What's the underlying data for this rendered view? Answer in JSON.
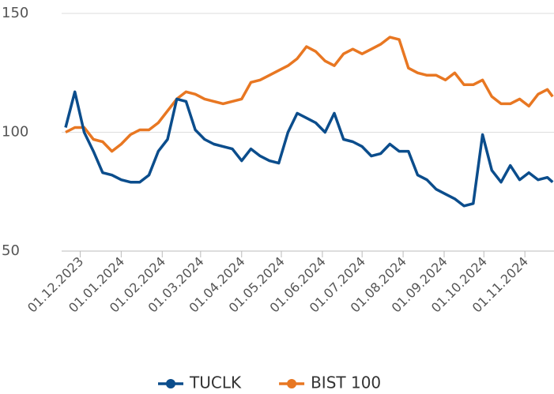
{
  "chart_data": {
    "type": "line",
    "x": [
      "2023-11-20",
      "2023-11-27",
      "2023-12-04",
      "2023-12-11",
      "2023-12-18",
      "2023-12-25",
      "2024-01-01",
      "2024-01-08",
      "2024-01-15",
      "2024-01-22",
      "2024-01-29",
      "2024-02-05",
      "2024-02-12",
      "2024-02-19",
      "2024-02-26",
      "2024-03-04",
      "2024-03-11",
      "2024-03-18",
      "2024-03-25",
      "2024-04-01",
      "2024-04-08",
      "2024-04-15",
      "2024-04-22",
      "2024-04-29",
      "2024-05-06",
      "2024-05-13",
      "2024-05-20",
      "2024-05-27",
      "2024-06-03",
      "2024-06-10",
      "2024-06-17",
      "2024-06-24",
      "2024-07-01",
      "2024-07-08",
      "2024-07-15",
      "2024-07-22",
      "2024-07-29",
      "2024-08-05",
      "2024-08-12",
      "2024-08-19",
      "2024-08-26",
      "2024-09-02",
      "2024-09-09",
      "2024-09-16",
      "2024-09-23",
      "2024-09-30",
      "2024-10-07",
      "2024-10-14",
      "2024-10-21",
      "2024-10-28",
      "2024-11-04",
      "2024-11-11",
      "2024-11-18",
      "2024-11-22"
    ],
    "series": [
      {
        "name": "TUCLK",
        "color": "#0b4d8c",
        "values": [
          102,
          117,
          100,
          92,
          83,
          82,
          80,
          79,
          79,
          82,
          92,
          97,
          114,
          113,
          101,
          97,
          95,
          94,
          93,
          88,
          93,
          90,
          88,
          87,
          100,
          108,
          106,
          104,
          100,
          108,
          97,
          96,
          94,
          90,
          91,
          95,
          92,
          92,
          82,
          80,
          76,
          74,
          72,
          69,
          70,
          99,
          84,
          79,
          86,
          80,
          83,
          80,
          81,
          79
        ]
      },
      {
        "name": "BIST 100",
        "color": "#e87722",
        "values": [
          100,
          102,
          102,
          97,
          96,
          92,
          95,
          99,
          101,
          101,
          104,
          109,
          114,
          117,
          116,
          114,
          113,
          112,
          113,
          114,
          121,
          122,
          124,
          126,
          128,
          131,
          136,
          134,
          130,
          128,
          133,
          135,
          133,
          135,
          137,
          140,
          139,
          127,
          125,
          124,
          124,
          122,
          125,
          120,
          120,
          122,
          115,
          112,
          112,
          114,
          111,
          116,
          118,
          115
        ]
      }
    ],
    "xlim": [
      "2023-11-17",
      "2024-11-23"
    ],
    "xticks": [
      {
        "value": "2023-12-01",
        "label": "01.12.2023"
      },
      {
        "value": "2024-01-01",
        "label": "01.01.2024"
      },
      {
        "value": "2024-02-01",
        "label": "01.02.2024"
      },
      {
        "value": "2024-03-01",
        "label": "01.03.2024"
      },
      {
        "value": "2024-04-01",
        "label": "01.04.2024"
      },
      {
        "value": "2024-05-01",
        "label": "01.05.2024"
      },
      {
        "value": "2024-06-01",
        "label": "01.06.2024"
      },
      {
        "value": "2024-07-01",
        "label": "01.07.2024"
      },
      {
        "value": "2024-08-01",
        "label": "01.08.2024"
      },
      {
        "value": "2024-09-01",
        "label": "01.09.2024"
      },
      {
        "value": "2024-10-01",
        "label": "01.10.2024"
      },
      {
        "value": "2024-11-01",
        "label": "01.11.2024"
      }
    ],
    "ylim": [
      50,
      150
    ],
    "yticks": [
      50,
      100,
      150
    ],
    "grid": true,
    "legend": "bottom"
  }
}
